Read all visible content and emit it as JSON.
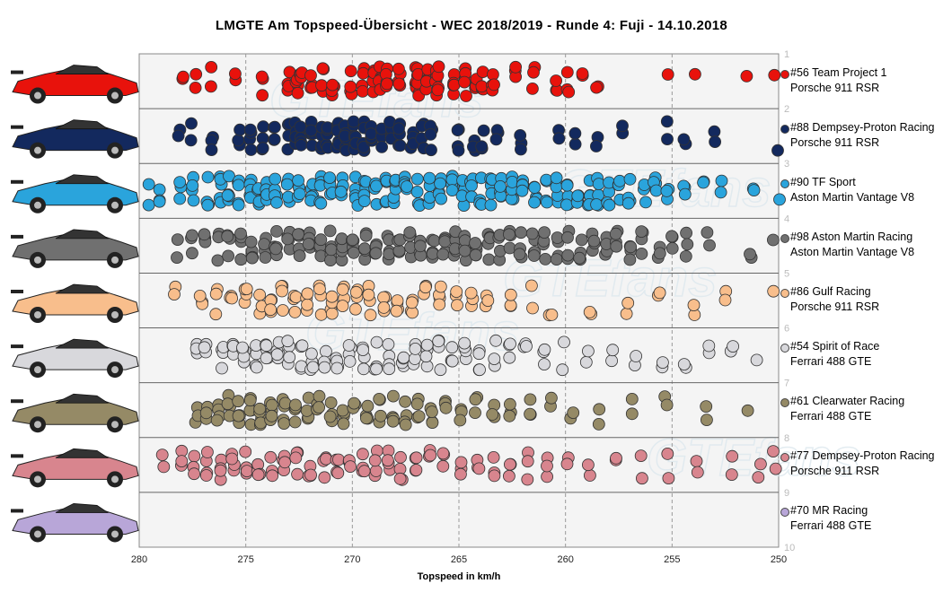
{
  "chart_data": {
    "type": "scatter",
    "title": "LMGTE  Am  Topspeed-Übersicht   - WEC 2018/2019  - Runde  4:  Fuji  - 14.10.2018",
    "xlabel": "Topspeed in km/h",
    "x_ticks": [
      "280",
      "275",
      "270",
      "265",
      "260",
      "255",
      "250"
    ],
    "xlim": [
      280,
      250
    ],
    "y_ticks": [
      "1",
      "2",
      "3",
      "4",
      "5",
      "6",
      "7",
      "8",
      "9",
      "10"
    ],
    "grid": true,
    "legend_position": "right",
    "series": [
      {
        "name": "#56 Team Project 1",
        "subtitle": "Porsche 911 RSR",
        "color": "#e8120c",
        "speeds": [
          277.9,
          277.3,
          276.6,
          275.5,
          274.2,
          273.0,
          272.6,
          272.4,
          271.9,
          271.4,
          270.9,
          270.1,
          269.5,
          269.0,
          268.7,
          268.4,
          267.8,
          267.0,
          266.9,
          266.5,
          266.1,
          266.0,
          265.2,
          264.7,
          264.2,
          263.9,
          263.4,
          262.3,
          261.5,
          260.4,
          259.9,
          259.2,
          258.5,
          255.2,
          253.9,
          251.5,
          250.2
        ]
      },
      {
        "name": "#88 Dempsey-Proton Racing",
        "subtitle": "Porsche 911 RSR",
        "color": "#13295e",
        "speeds": [
          278.1,
          277.6,
          276.6,
          275.3,
          274.8,
          274.2,
          273.7,
          273.0,
          272.7,
          272.4,
          271.9,
          271.4,
          271.2,
          270.7,
          270.3,
          269.9,
          269.5,
          269.1,
          268.6,
          268.2,
          267.8,
          267.2,
          266.7,
          266.3,
          265.0,
          264.3,
          263.9,
          263.2,
          262.1,
          260.3,
          259.5,
          258.5,
          257.3,
          255.2,
          254.4,
          253.0,
          250.1
        ]
      },
      {
        "name": "#90 TF Sport",
        "subtitle": "Aston Martin Vantage V8",
        "color": "#2aa4dc",
        "speeds": [
          279.6,
          279.0,
          278.1,
          277.5,
          276.8,
          276.2,
          275.8,
          275.3,
          274.8,
          274.4,
          274.0,
          273.6,
          273.0,
          272.5,
          271.9,
          271.5,
          271.0,
          270.5,
          269.8,
          269.4,
          268.9,
          268.4,
          268.0,
          267.5,
          266.9,
          266.4,
          265.9,
          265.3,
          264.8,
          264.4,
          264.0,
          263.5,
          263.0,
          262.5,
          262.0,
          261.4,
          260.9,
          260.4,
          259.9,
          259.4,
          258.9,
          258.5,
          258.0,
          257.5,
          257.0,
          256.3,
          255.8,
          255.2,
          254.4,
          253.5,
          252.7,
          251.2,
          250.0
        ]
      },
      {
        "name": "#98 Aston Martin Racing",
        "subtitle": "Aston Martin Vantage V8",
        "color": "#707070",
        "speeds": [
          278.2,
          277.5,
          276.9,
          276.3,
          275.8,
          275.2,
          274.7,
          274.1,
          273.6,
          273.0,
          272.5,
          272.0,
          271.5,
          271.0,
          270.5,
          270.0,
          269.4,
          268.9,
          268.3,
          267.8,
          267.3,
          266.8,
          266.2,
          265.7,
          265.2,
          264.7,
          264.2,
          263.6,
          263.1,
          262.6,
          262.1,
          261.5,
          261.0,
          260.4,
          259.9,
          259.3,
          258.7,
          258.1,
          257.6,
          257.0,
          256.4,
          255.6,
          255.0,
          254.3,
          253.3,
          251.3,
          250.2
        ]
      },
      {
        "name": "#86 Gulf Racing",
        "subtitle": "Porsche 911 RSR",
        "color": "#f8be8c",
        "speeds": [
          278.3,
          277.1,
          276.4,
          275.7,
          275.0,
          274.3,
          273.8,
          273.3,
          272.7,
          272.1,
          271.5,
          271.0,
          270.4,
          269.8,
          269.2,
          268.5,
          267.9,
          267.2,
          266.6,
          265.9,
          265.1,
          264.4,
          263.7,
          262.6,
          261.6,
          260.7,
          258.8,
          257.1,
          255.6,
          254.0,
          252.5,
          250.3
        ]
      },
      {
        "name": "#54 Spirit of Race",
        "subtitle": "Ferrari 488 GTE",
        "color": "#d8d8dc",
        "speeds": [
          277.3,
          276.9,
          276.1,
          275.6,
          275.1,
          274.5,
          274.0,
          273.5,
          273.0,
          272.4,
          271.9,
          271.3,
          270.7,
          270.1,
          269.5,
          268.9,
          268.3,
          267.6,
          267.1,
          266.5,
          265.9,
          265.3,
          264.7,
          264.0,
          263.3,
          262.6,
          261.9,
          261.0,
          260.1,
          259.0,
          257.8,
          256.7,
          255.5,
          254.4,
          253.3,
          252.2,
          251.0
        ]
      },
      {
        "name": "#61 Clearwater Racing",
        "subtitle": "Ferrari 488 GTE",
        "color": "#958a66",
        "speeds": [
          277.3,
          276.8,
          276.3,
          275.8,
          275.3,
          274.8,
          274.3,
          273.8,
          273.2,
          272.7,
          272.1,
          271.6,
          271.0,
          270.4,
          269.9,
          269.3,
          268.7,
          268.1,
          267.5,
          266.9,
          266.3,
          265.6,
          264.9,
          264.2,
          263.4,
          262.6,
          261.7,
          260.7,
          259.7,
          258.4,
          256.9,
          255.3,
          253.4,
          251.4
        ]
      },
      {
        "name": "#77 Dempsey-Proton Racing",
        "subtitle": "Porsche 911 RSR",
        "color": "#d8858e",
        "speeds": [
          278.9,
          278.0,
          277.4,
          276.8,
          276.2,
          275.6,
          275.0,
          274.4,
          273.8,
          273.2,
          272.6,
          272.0,
          271.3,
          270.7,
          270.1,
          269.5,
          268.9,
          268.3,
          267.7,
          267.0,
          266.4,
          265.7,
          264.9,
          264.1,
          263.4,
          262.6,
          261.8,
          260.9,
          259.9,
          258.9,
          257.6,
          256.4,
          255.2,
          253.8,
          252.2,
          250.9,
          250.2
        ]
      },
      {
        "name": "#70 MR Racing",
        "subtitle": "Ferrari 488 GTE",
        "color": "#b8a6d8",
        "speeds": []
      }
    ]
  },
  "watermark": "GTEfans",
  "car_icons": [
    "porsche-911-rsr-56-livery",
    "porsche-911-rsr-88-livery",
    "aston-martin-vantage-90-livery",
    "aston-martin-vantage-98-livery",
    "porsche-911-rsr-86-livery",
    "ferrari-488-gte-54-livery",
    "ferrari-488-gte-61-livery",
    "porsche-911-rsr-77-livery",
    "ferrari-488-gte-70-livery"
  ]
}
